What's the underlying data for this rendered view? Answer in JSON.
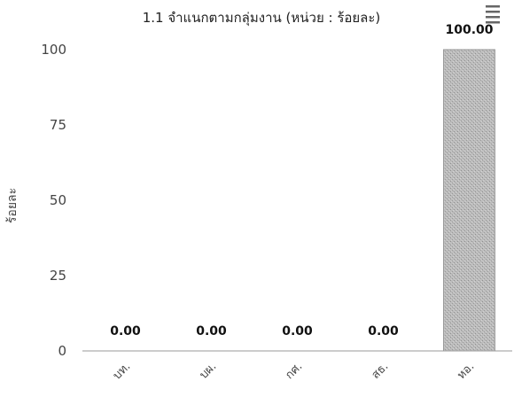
{
  "chart_data": {
    "type": "bar",
    "title": "1.1 จำแนกตามกลุ่มงาน (หน่วย : ร้อยละ)",
    "ylabel": "ร้อยละ",
    "xlabel": "",
    "categories": [
      "บท.",
      "บผ.",
      "กศ.",
      "สธ.",
      "หอ."
    ],
    "values": [
      0,
      0,
      0,
      0,
      100
    ],
    "value_labels": [
      "0.00",
      "0.00",
      "0.00",
      "0.00",
      "100.00"
    ],
    "ylim": [
      0,
      100
    ],
    "yticks": [
      0,
      25,
      50,
      75,
      100
    ],
    "grid": false,
    "legend": "none",
    "bar_color": "#b8b8b8"
  },
  "menu": {
    "icon": "hamburger-menu-icon"
  }
}
